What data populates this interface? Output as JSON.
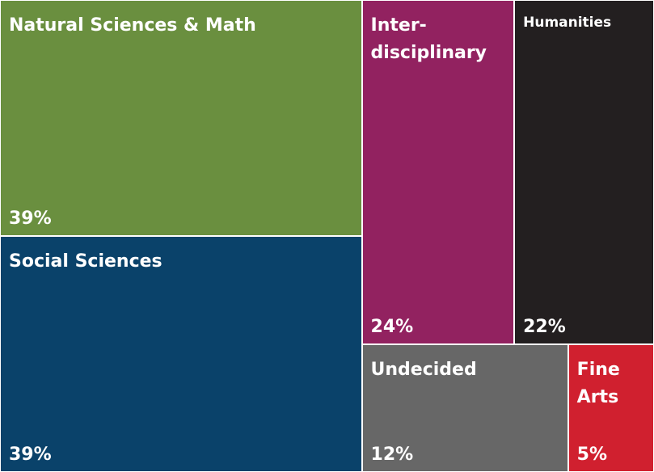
{
  "chart_data": {
    "type": "treemap",
    "categories": [
      "Natural Sciences & Math",
      "Social Sciences",
      "Inter-disciplinary",
      "Humanities",
      "Undecided",
      "Fine Arts"
    ],
    "values": [
      39,
      39,
      24,
      22,
      12,
      5
    ],
    "value_labels": [
      "39%",
      "39%",
      "24%",
      "22%",
      "12%",
      "5%"
    ],
    "colors": [
      "#6a8f3f",
      "#0a426a",
      "#922260",
      "#231f20",
      "#676767",
      "#d0202f"
    ]
  }
}
